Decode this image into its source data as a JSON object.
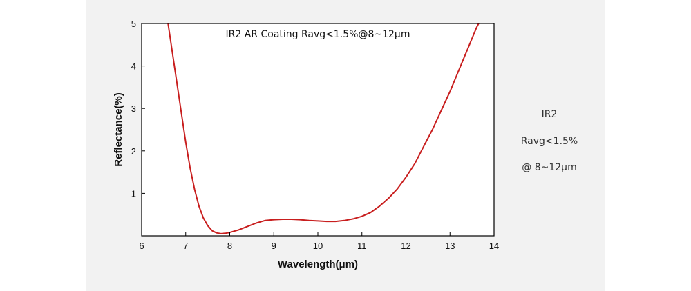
{
  "colors": {
    "panel_bg": "#f2f2f2",
    "plot_bg": "#ffffff",
    "curve": "#c81e1e",
    "axis": "#000000"
  },
  "side_notes": [
    "IR2",
    "Ravg<1.5%",
    "@ 8~12μm"
  ],
  "chart_data": {
    "type": "line",
    "title": "IR2 AR Coating Ravg<1.5%@8~12μm",
    "xlabel": "Wavelength(μm)",
    "ylabel": "Reflectance(%)",
    "xlim": [
      6,
      14
    ],
    "ylim": [
      0,
      5
    ],
    "xticks": [
      6,
      7,
      8,
      9,
      10,
      11,
      12,
      13,
      14
    ],
    "yticks": [
      1,
      2,
      3,
      4,
      5
    ],
    "grid": false,
    "series": [
      {
        "x": [
          6.6,
          6.7,
          6.8,
          6.9,
          7.0,
          7.1,
          7.2,
          7.3,
          7.4,
          7.5,
          7.6,
          7.7,
          7.8,
          7.9,
          8.0,
          8.2,
          8.4,
          8.6,
          8.8,
          9.0,
          9.2,
          9.4,
          9.6,
          9.8,
          10.0,
          10.2,
          10.4,
          10.6,
          10.8,
          11.0,
          11.2,
          11.4,
          11.6,
          11.8,
          12.0,
          12.2,
          12.4,
          12.6,
          12.8,
          13.0,
          13.2,
          13.4,
          13.6,
          13.65
        ],
        "y": [
          5.0,
          4.3,
          3.6,
          2.9,
          2.2,
          1.6,
          1.1,
          0.7,
          0.42,
          0.24,
          0.12,
          0.07,
          0.05,
          0.06,
          0.08,
          0.14,
          0.22,
          0.3,
          0.36,
          0.38,
          0.39,
          0.39,
          0.38,
          0.36,
          0.35,
          0.34,
          0.34,
          0.36,
          0.4,
          0.46,
          0.55,
          0.7,
          0.88,
          1.1,
          1.38,
          1.7,
          2.1,
          2.5,
          2.95,
          3.4,
          3.9,
          4.4,
          4.9,
          5.0
        ]
      }
    ]
  }
}
